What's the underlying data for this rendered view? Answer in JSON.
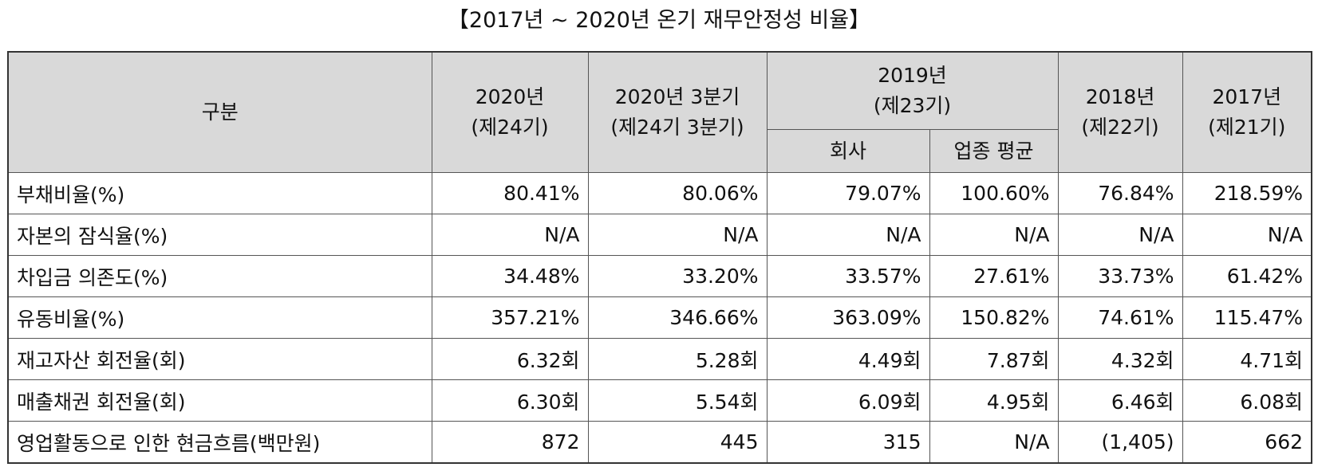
{
  "title": "【2017년 ~ 2020년 온기 재무안정성 비율】",
  "header": {
    "category": "구분",
    "col_2020": {
      "line1": "2020년",
      "line2": "(제24기)"
    },
    "col_2020q3": {
      "line1": "2020년 3분기",
      "line2": "(제24기 3분기)"
    },
    "col_2019": {
      "line1": "2019년",
      "line2": "(제23기)",
      "sub_company": "회사",
      "sub_industry": "업종 평균"
    },
    "col_2018": {
      "line1": "2018년",
      "line2": "(제22기)"
    },
    "col_2017": {
      "line1": "2017년",
      "line2": "(제21기)"
    }
  },
  "rows": [
    {
      "label": "부채비율(%)",
      "values": [
        "80.41%",
        "80.06%",
        "79.07%",
        "100.60%",
        "76.84%",
        "218.59%"
      ]
    },
    {
      "label": "자본의 잠식율(%)",
      "values": [
        "N/A",
        "N/A",
        "N/A",
        "N/A",
        "N/A",
        "N/A"
      ]
    },
    {
      "label": "차입금 의존도(%)",
      "values": [
        "34.48%",
        "33.20%",
        "33.57%",
        "27.61%",
        "33.73%",
        "61.42%"
      ]
    },
    {
      "label": "유동비율(%)",
      "values": [
        "357.21%",
        "346.66%",
        "363.09%",
        "150.82%",
        "74.61%",
        "115.47%"
      ]
    },
    {
      "label": "재고자산 회전율(회)",
      "values": [
        "6.32회",
        "5.28회",
        "4.49회",
        "7.87회",
        "4.32회",
        "4.71회"
      ]
    },
    {
      "label": "매출채권 회전율(회)",
      "values": [
        "6.30회",
        "5.54회",
        "6.09회",
        "4.95회",
        "6.46회",
        "6.08회"
      ]
    },
    {
      "label": "영업활동으로 인한 현금흐름(백만원)",
      "values": [
        "872",
        "445",
        "315",
        "N/A",
        "(1,405)",
        "662"
      ]
    }
  ]
}
